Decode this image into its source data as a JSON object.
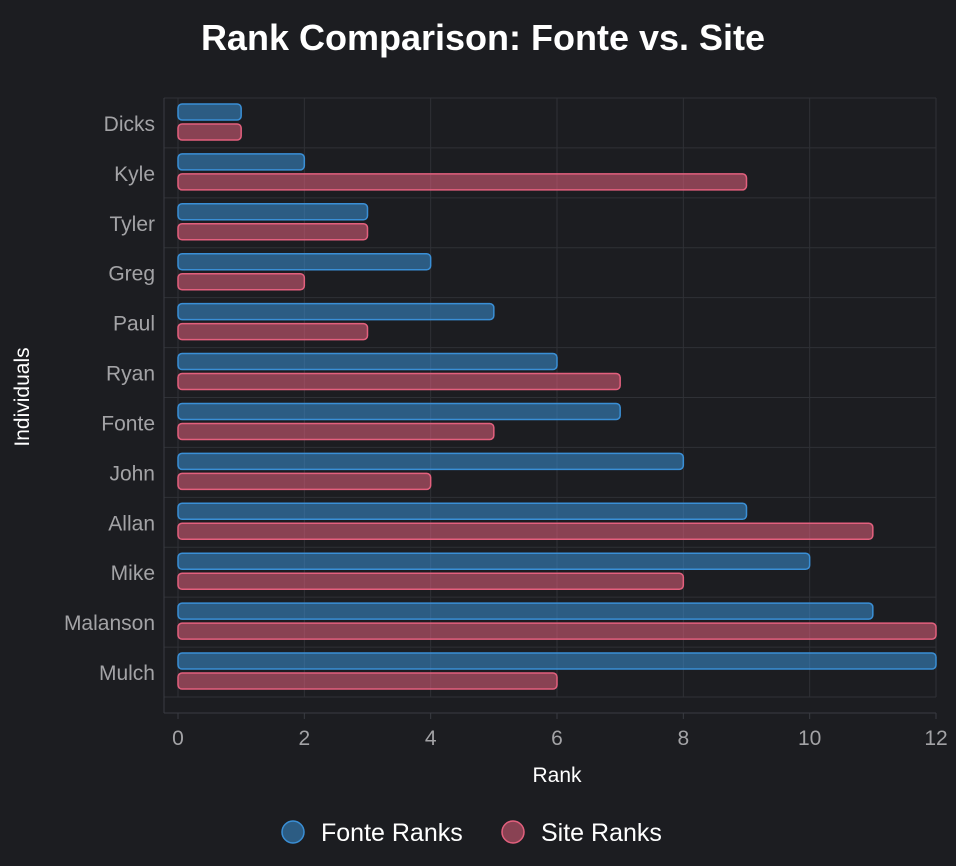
{
  "chart_data": {
    "type": "bar",
    "orientation": "horizontal",
    "title": "Rank Comparison: Fonte vs. Site",
    "xlabel": "Rank",
    "ylabel": "Individuals",
    "xlim": [
      0,
      12
    ],
    "x_ticks": [
      0,
      2,
      4,
      6,
      8,
      10,
      12
    ],
    "grid": true,
    "legend_position": "bottom",
    "categories": [
      "Dicks",
      "Kyle",
      "Tyler",
      "Greg",
      "Paul",
      "Ryan",
      "Fonte",
      "John",
      "Allan",
      "Mike",
      "Malanson",
      "Mulch"
    ],
    "series": [
      {
        "name": "Fonte Ranks",
        "color": "#3a8fd6",
        "values": [
          1,
          2,
          3,
          4,
          5,
          6,
          7,
          8,
          9,
          10,
          11,
          12
        ]
      },
      {
        "name": "Site Ranks",
        "color": "#e3607e",
        "values": [
          1,
          9,
          3,
          2,
          3,
          7,
          5,
          4,
          11,
          8,
          12,
          6
        ]
      }
    ]
  }
}
